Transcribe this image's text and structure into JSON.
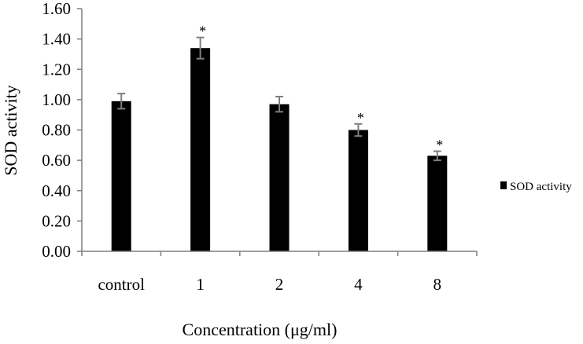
{
  "chart_data": {
    "type": "bar",
    "categories": [
      "control",
      "1",
      "2",
      "4",
      "8"
    ],
    "series": [
      {
        "name": "SOD activity",
        "values": [
          0.99,
          1.34,
          0.97,
          0.8,
          0.63
        ],
        "error": [
          0.05,
          0.07,
          0.05,
          0.04,
          0.03
        ],
        "significance": [
          "",
          "*",
          "",
          "*",
          "*"
        ]
      }
    ],
    "xlabel": "Concentration (μg/ml)",
    "ylabel": "SOD activity",
    "ylim": [
      0,
      1.6
    ],
    "yticks": [
      "0.00",
      "0.20",
      "0.40",
      "0.60",
      "0.80",
      "1.00",
      "1.20",
      "1.40",
      "1.60"
    ],
    "legend_position": "right",
    "grid": false,
    "colors": {
      "bar": "#000000",
      "error_bar": "#7f7f7f",
      "axis": "#7f7f7f"
    }
  }
}
